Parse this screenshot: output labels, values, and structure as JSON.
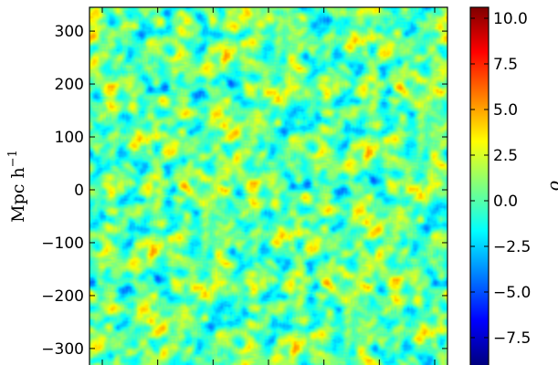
{
  "chart_data": {
    "type": "heatmap",
    "title": "",
    "xlabel": "",
    "ylabel": "Mpc h⁻¹",
    "ylim": [
      -345,
      345
    ],
    "y_ticks": [
      {
        "value": 300,
        "label": "300"
      },
      {
        "value": 200,
        "label": "200"
      },
      {
        "value": 100,
        "label": "100"
      },
      {
        "value": 0,
        "label": "0"
      },
      {
        "value": -100,
        "label": "−100"
      },
      {
        "value": -200,
        "label": "−200"
      },
      {
        "value": -300,
        "label": "−300"
      }
    ],
    "x_tick_count": 7,
    "field_value_range": [
      -9,
      10.6
    ],
    "colormap": "jet",
    "colormap_stops": [
      "#00007f",
      "#0000ff",
      "#007fff",
      "#00ffff",
      "#7fff7f",
      "#ffff00",
      "#ff7f00",
      "#ff0000",
      "#7f0000"
    ],
    "colorbar": {
      "label": "δ",
      "range": [
        -9,
        10.6
      ],
      "ticks": [
        {
          "value": 10,
          "label": "10.0"
        },
        {
          "value": 7.5,
          "label": "7.5"
        },
        {
          "value": 5,
          "label": "5.0"
        },
        {
          "value": 2.5,
          "label": "2.5"
        },
        {
          "value": 0,
          "label": "0.0"
        },
        {
          "value": -2.5,
          "label": "−2.5"
        },
        {
          "value": -5,
          "label": "−5.0"
        },
        {
          "value": -7.5,
          "label": "−7.5"
        }
      ]
    }
  }
}
